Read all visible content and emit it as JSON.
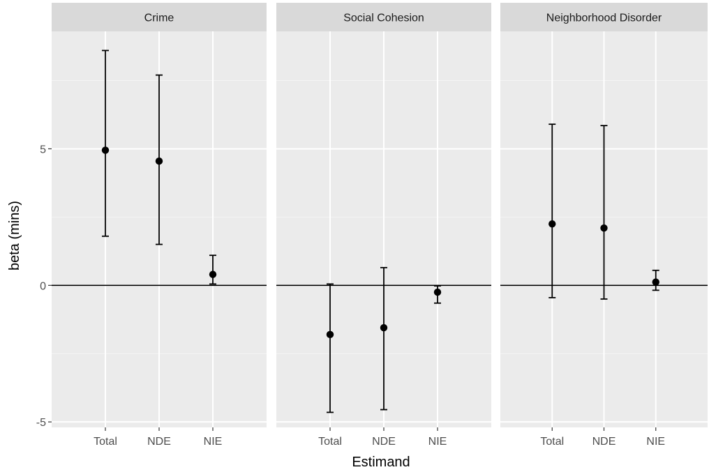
{
  "chart_data": {
    "type": "scatter",
    "subtype": "point-with-errorbars, faceted",
    "xlabel": "Estimand",
    "ylabel": "beta (mins)",
    "ylim": [
      -5.2,
      9.3
    ],
    "yticks": [
      -5,
      0,
      5
    ],
    "categories": [
      "Total",
      "NDE",
      "NIE"
    ],
    "reference_line": 0,
    "grid": true,
    "legend": "none",
    "colors": {
      "panel_bg": "#ebebeb",
      "strip_bg": "#d9d9d9",
      "grid_major": "#ffffff",
      "grid_minor": "#f4f4f4",
      "point": "#000000"
    },
    "facets": [
      {
        "title": "Crime",
        "points": [
          {
            "x": "Total",
            "y": 4.95,
            "lower": 1.8,
            "upper": 8.6
          },
          {
            "x": "NDE",
            "y": 4.55,
            "lower": 1.5,
            "upper": 7.7
          },
          {
            "x": "NIE",
            "y": 0.4,
            "lower": 0.05,
            "upper": 1.1
          }
        ]
      },
      {
        "title": "Social Cohesion",
        "points": [
          {
            "x": "Total",
            "y": -1.8,
            "lower": -4.65,
            "upper": 0.05
          },
          {
            "x": "NDE",
            "y": -1.55,
            "lower": -4.55,
            "upper": 0.65
          },
          {
            "x": "NIE",
            "y": -0.25,
            "lower": -0.65,
            "upper": -0.02
          }
        ]
      },
      {
        "title": "Neighborhood Disorder",
        "points": [
          {
            "x": "Total",
            "y": 2.25,
            "lower": -0.45,
            "upper": 5.9
          },
          {
            "x": "NDE",
            "y": 2.1,
            "lower": -0.5,
            "upper": 5.85
          },
          {
            "x": "NIE",
            "y": 0.12,
            "lower": -0.18,
            "upper": 0.55
          }
        ]
      }
    ]
  }
}
